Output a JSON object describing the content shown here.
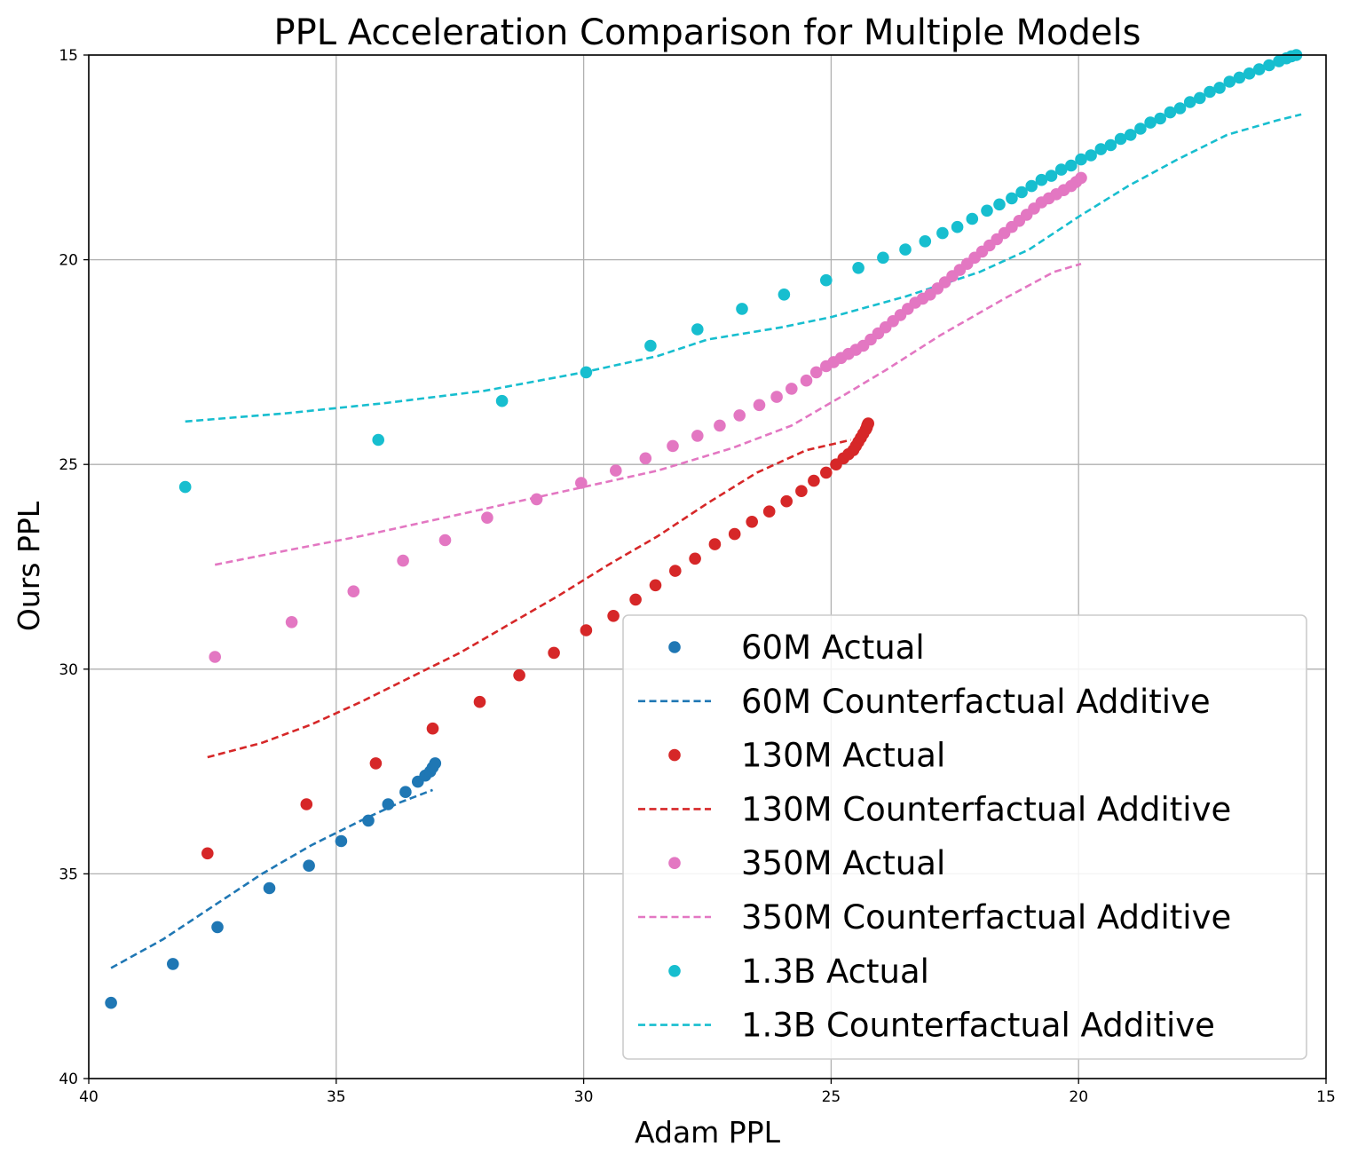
{
  "chart_data": {
    "type": "scatter",
    "title": "PPL Acceleration Comparison for Multiple Models",
    "xlabel": "Adam PPL",
    "ylabel": "Ours PPL",
    "xlim": [
      40,
      15
    ],
    "ylim": [
      40,
      15
    ],
    "xticks": [
      40,
      35,
      30,
      25,
      20,
      15
    ],
    "yticks": [
      15,
      20,
      25,
      30,
      35,
      40
    ],
    "grid": true,
    "legend_position": "lower-right",
    "series": [
      {
        "name": "60M Actual",
        "kind": "markers",
        "color": "#1f77b4",
        "x": [
          39.55,
          38.3,
          37.4,
          36.35,
          35.55,
          34.9,
          34.35,
          33.95,
          33.6,
          33.35,
          33.2,
          33.1,
          33.05,
          33.0
        ],
        "y": [
          38.15,
          37.2,
          36.3,
          35.35,
          34.8,
          34.2,
          33.7,
          33.3,
          33.0,
          32.75,
          32.6,
          32.5,
          32.4,
          32.3
        ]
      },
      {
        "name": "60M Counterfactual Additive",
        "kind": "line",
        "color": "#1f77b4",
        "x": [
          39.55,
          38.5,
          37.5,
          36.5,
          35.5,
          34.5,
          33.7,
          33.05
        ],
        "y": [
          37.3,
          36.6,
          35.8,
          35.0,
          34.3,
          33.7,
          33.25,
          32.95
        ]
      },
      {
        "name": "130M Actual",
        "kind": "markers",
        "color": "#d62728",
        "x": [
          37.6,
          35.6,
          34.2,
          33.05,
          32.1,
          31.3,
          30.6,
          29.95,
          29.4,
          28.95,
          28.55,
          28.15,
          27.75,
          27.35,
          26.95,
          26.6,
          26.25,
          25.9,
          25.6,
          25.35,
          25.1,
          24.9,
          24.75,
          24.65,
          24.55,
          24.5,
          24.45,
          24.4,
          24.35,
          24.3,
          24.28,
          24.27,
          24.26,
          24.25
        ],
        "y": [
          34.5,
          33.3,
          32.3,
          31.45,
          30.8,
          30.15,
          29.6,
          29.05,
          28.7,
          28.3,
          27.95,
          27.6,
          27.3,
          26.95,
          26.7,
          26.4,
          26.15,
          25.9,
          25.65,
          25.4,
          25.2,
          25.0,
          24.85,
          24.75,
          24.65,
          24.55,
          24.45,
          24.35,
          24.25,
          24.15,
          24.1,
          24.05,
          24.02,
          24.0
        ]
      },
      {
        "name": "130M Counterfactual Additive",
        "kind": "line",
        "color": "#d62728",
        "x": [
          37.6,
          36.5,
          35.5,
          34.5,
          33.5,
          32.5,
          31.5,
          30.5,
          29.5,
          28.5,
          27.5,
          26.5,
          25.5,
          24.95,
          24.6
        ],
        "y": [
          32.15,
          31.8,
          31.35,
          30.8,
          30.2,
          29.6,
          28.9,
          28.2,
          27.45,
          26.75,
          25.95,
          25.2,
          24.65,
          24.5,
          24.4
        ]
      },
      {
        "name": "350M Actual",
        "kind": "markers",
        "color": "#e377c2",
        "x": [
          37.45,
          35.9,
          34.65,
          33.65,
          32.8,
          31.95,
          30.95,
          30.05,
          29.35,
          28.75,
          28.2,
          27.7,
          27.25,
          26.85,
          26.45,
          26.1,
          25.8,
          25.5,
          25.3,
          25.1,
          24.95,
          24.8,
          24.65,
          24.5,
          24.35,
          24.2,
          24.05,
          23.9,
          23.75,
          23.6,
          23.45,
          23.3,
          23.15,
          23.0,
          22.85,
          22.7,
          22.55,
          22.4,
          22.25,
          22.1,
          21.95,
          21.8,
          21.65,
          21.5,
          21.35,
          21.2,
          21.05,
          20.9,
          20.75,
          20.6,
          20.45,
          20.3,
          20.15,
          20.05,
          19.95
        ],
        "y": [
          29.7,
          28.85,
          28.1,
          27.35,
          26.85,
          26.3,
          25.85,
          25.45,
          25.15,
          24.85,
          24.55,
          24.3,
          24.05,
          23.8,
          23.55,
          23.35,
          23.15,
          22.95,
          22.75,
          22.6,
          22.5,
          22.4,
          22.3,
          22.2,
          22.1,
          21.95,
          21.8,
          21.65,
          21.5,
          21.35,
          21.2,
          21.05,
          20.95,
          20.85,
          20.7,
          20.55,
          20.4,
          20.25,
          20.1,
          19.95,
          19.8,
          19.65,
          19.5,
          19.35,
          19.2,
          19.05,
          18.9,
          18.75,
          18.6,
          18.5,
          18.4,
          18.3,
          18.2,
          18.1,
          18.0
        ]
      },
      {
        "name": "350M Counterfactual Additive",
        "kind": "line",
        "color": "#e377c2",
        "x": [
          37.45,
          36.0,
          34.5,
          33.0,
          31.5,
          30.0,
          28.5,
          27.0,
          25.8,
          25.3,
          24.8,
          23.9,
          22.8,
          21.5,
          20.5,
          19.95
        ],
        "y": [
          27.45,
          27.1,
          26.75,
          26.35,
          25.95,
          25.55,
          25.15,
          24.6,
          24.05,
          23.7,
          23.35,
          22.7,
          21.85,
          20.95,
          20.3,
          20.1
        ]
      },
      {
        "name": "1.3B Actual",
        "kind": "markers",
        "color": "#17becf",
        "x": [
          38.05,
          34.15,
          31.65,
          29.95,
          28.65,
          27.7,
          26.8,
          25.95,
          25.1,
          24.45,
          23.95,
          23.5,
          23.1,
          22.75,
          22.45,
          22.15,
          21.85,
          21.6,
          21.35,
          21.15,
          20.95,
          20.75,
          20.55,
          20.35,
          20.15,
          19.95,
          19.75,
          19.55,
          19.35,
          19.15,
          18.95,
          18.75,
          18.55,
          18.35,
          18.15,
          17.95,
          17.75,
          17.55,
          17.35,
          17.15,
          16.95,
          16.75,
          16.55,
          16.35,
          16.15,
          15.95,
          15.8,
          15.7,
          15.6
        ],
        "y": [
          25.55,
          24.4,
          23.45,
          22.75,
          22.1,
          21.7,
          21.2,
          20.85,
          20.5,
          20.2,
          19.95,
          19.75,
          19.55,
          19.35,
          19.2,
          19.0,
          18.8,
          18.65,
          18.5,
          18.35,
          18.2,
          18.05,
          17.95,
          17.8,
          17.7,
          17.55,
          17.45,
          17.3,
          17.2,
          17.05,
          16.95,
          16.8,
          16.65,
          16.55,
          16.4,
          16.3,
          16.15,
          16.05,
          15.9,
          15.8,
          15.65,
          15.55,
          15.45,
          15.35,
          15.25,
          15.15,
          15.08,
          15.03,
          15.0
        ]
      },
      {
        "name": "1.3B Counterfactual Additive",
        "kind": "line",
        "color": "#17becf",
        "x": [
          38.05,
          36.0,
          34.0,
          32.0,
          30.0,
          28.5,
          27.5,
          26.0,
          25.0,
          23.5,
          22.0,
          21.0,
          20.0,
          19.0,
          18.0,
          17.0,
          16.0,
          15.5
        ],
        "y": [
          23.95,
          23.75,
          23.5,
          23.2,
          22.75,
          22.35,
          21.95,
          21.65,
          21.4,
          20.9,
          20.3,
          19.75,
          18.95,
          18.2,
          17.55,
          16.95,
          16.6,
          16.45
        ]
      }
    ]
  }
}
